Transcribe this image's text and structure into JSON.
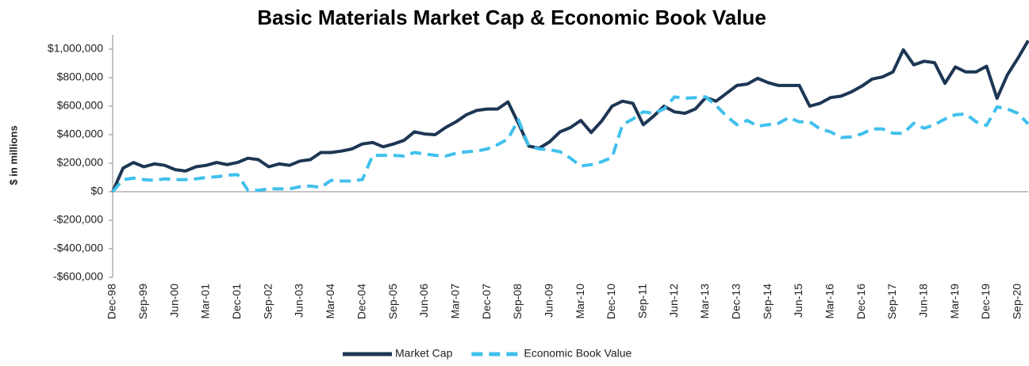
{
  "chart_data": {
    "type": "line",
    "title": "Basic Materials Market Cap & Economic Book Value",
    "y_label": "$ in millions",
    "categories": [
      "Dec-98",
      null,
      null,
      "Sep-99",
      null,
      null,
      "Jun-00",
      null,
      null,
      "Mar-01",
      null,
      null,
      "Dec-01",
      null,
      null,
      "Sep-02",
      null,
      null,
      "Jun-03",
      null,
      null,
      "Mar-04",
      null,
      null,
      "Dec-04",
      null,
      null,
      "Sep-05",
      null,
      null,
      "Jun-06",
      null,
      null,
      "Mar-07",
      null,
      null,
      "Dec-07",
      null,
      null,
      "Sep-08",
      null,
      null,
      "Jun-09",
      null,
      null,
      "Mar-10",
      null,
      null,
      "Dec-10",
      null,
      null,
      "Sep-11",
      null,
      null,
      "Jun-12",
      null,
      null,
      "Mar-13",
      null,
      null,
      "Dec-13",
      null,
      null,
      "Sep-14",
      null,
      null,
      "Jun-15",
      null,
      null,
      "Mar-16",
      null,
      null,
      "Dec-16",
      null,
      null,
      "Sep-17",
      null,
      null,
      "Jun-18",
      null,
      null,
      "Mar-19",
      null,
      null,
      "Dec-19",
      null,
      null,
      "Sep-20",
      null
    ],
    "series": [
      {
        "name": "Market Cap",
        "color": "#1d3654",
        "dash": false,
        "values": [
          0,
          165000,
          205000,
          175000,
          195000,
          185000,
          155000,
          145000,
          175000,
          185000,
          205000,
          190000,
          205000,
          235000,
          225000,
          175000,
          195000,
          185000,
          215000,
          225000,
          275000,
          275000,
          285000,
          300000,
          335000,
          345000,
          315000,
          335000,
          360000,
          420000,
          405000,
          400000,
          450000,
          490000,
          540000,
          570000,
          580000,
          580000,
          630000,
          480000,
          320000,
          305000,
          350000,
          420000,
          450000,
          500000,
          415000,
          495000,
          600000,
          635000,
          620000,
          470000,
          530000,
          600000,
          560000,
          550000,
          580000,
          660000,
          635000,
          690000,
          745000,
          755000,
          795000,
          765000,
          745000,
          745000,
          745000,
          600000,
          620000,
          660000,
          670000,
          700000,
          740000,
          790000,
          805000,
          840000,
          995000,
          890000,
          915000,
          905000,
          760000,
          875000,
          840000,
          840000,
          880000,
          655000,
          820000,
          935000,
          1060000
        ]
      },
      {
        "name": "Economic Book Value",
        "color": "#41c0ed",
        "dash": true,
        "values": [
          0,
          85000,
          95000,
          85000,
          80000,
          90000,
          85000,
          85000,
          90000,
          100000,
          105000,
          115000,
          120000,
          10000,
          10000,
          20000,
          20000,
          20000,
          35000,
          40000,
          30000,
          80000,
          75000,
          75000,
          85000,
          255000,
          255000,
          255000,
          250000,
          275000,
          265000,
          255000,
          250000,
          270000,
          280000,
          285000,
          300000,
          330000,
          370000,
          505000,
          320000,
          300000,
          295000,
          280000,
          235000,
          180000,
          190000,
          210000,
          240000,
          470000,
          510000,
          560000,
          550000,
          580000,
          665000,
          655000,
          660000,
          665000,
          605000,
          530000,
          470000,
          500000,
          460000,
          470000,
          480000,
          520000,
          490000,
          490000,
          440000,
          420000,
          380000,
          385000,
          405000,
          440000,
          440000,
          410000,
          410000,
          480000,
          445000,
          470000,
          510000,
          540000,
          545000,
          490000,
          465000,
          595000,
          580000,
          550000,
          475000
        ]
      }
    ],
    "ylim": [
      -600000,
      1100000
    ],
    "yticks": [
      {
        "value": -600000,
        "label": "-$600,000"
      },
      {
        "value": -400000,
        "label": "-$400,000"
      },
      {
        "value": -200000,
        "label": "-$200,000"
      },
      {
        "value": 0,
        "label": "$0"
      },
      {
        "value": 200000,
        "label": "$200,000"
      },
      {
        "value": 400000,
        "label": "$400,000"
      },
      {
        "value": 600000,
        "label": "$600,000"
      },
      {
        "value": 800000,
        "label": "$800,000"
      },
      {
        "value": 1000000,
        "label": "$1,000,000"
      }
    ],
    "grid": false,
    "legend": "bottom"
  }
}
